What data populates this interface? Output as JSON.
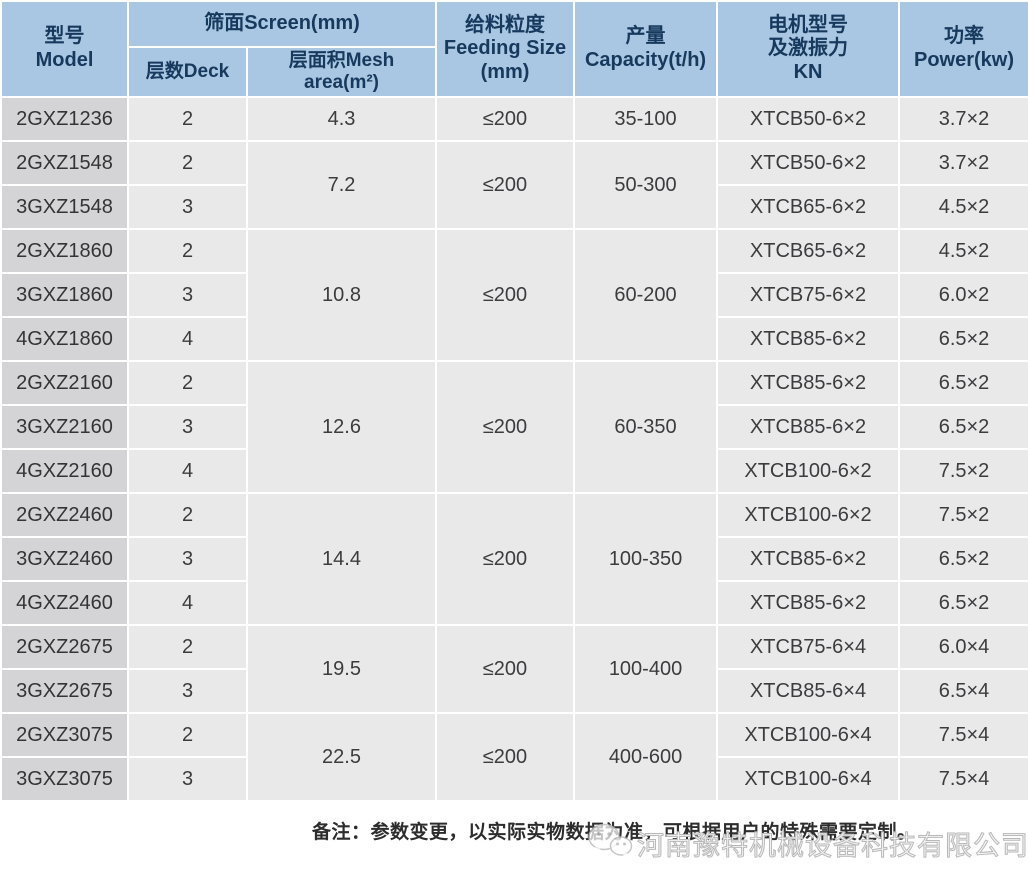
{
  "table": {
    "header": {
      "model": "型号\nModel",
      "screen_group": "筛面Screen(mm)",
      "deck": "层数Deck",
      "mesh_area": "层面积Mesh area(m²)",
      "feeding_size": "给料粒度\nFeeding Size\n(mm)",
      "capacity": "产量\nCapacity(t/h)",
      "motor": "电机型号\n及激振力\nKN",
      "power": "功率\nPower(kw)"
    },
    "groups": [
      {
        "mesh_area": "4.3",
        "feeding_size": "≤200",
        "capacity": "35-100",
        "rows": [
          {
            "model": "2GXZ1236",
            "deck": "2",
            "motor": "XTCB50-6×2",
            "power": "3.7×2"
          }
        ]
      },
      {
        "mesh_area": "7.2",
        "feeding_size": "≤200",
        "capacity": "50-300",
        "rows": [
          {
            "model": "2GXZ1548",
            "deck": "2",
            "motor": "XTCB50-6×2",
            "power": "3.7×2"
          },
          {
            "model": "3GXZ1548",
            "deck": "3",
            "motor": "XTCB65-6×2",
            "power": "4.5×2"
          }
        ]
      },
      {
        "mesh_area": "10.8",
        "feeding_size": "≤200",
        "capacity": "60-200",
        "rows": [
          {
            "model": "2GXZ1860",
            "deck": "2",
            "motor": "XTCB65-6×2",
            "power": "4.5×2"
          },
          {
            "model": "3GXZ1860",
            "deck": "3",
            "motor": "XTCB75-6×2",
            "power": "6.0×2"
          },
          {
            "model": "4GXZ1860",
            "deck": "4",
            "motor": "XTCB85-6×2",
            "power": "6.5×2"
          }
        ]
      },
      {
        "mesh_area": "12.6",
        "feeding_size": "≤200",
        "capacity": "60-350",
        "rows": [
          {
            "model": "2GXZ2160",
            "deck": "2",
            "motor": "XTCB85-6×2",
            "power": "6.5×2"
          },
          {
            "model": "3GXZ2160",
            "deck": "3",
            "motor": "XTCB85-6×2",
            "power": "6.5×2"
          },
          {
            "model": "4GXZ2160",
            "deck": "4",
            "motor": "XTCB100-6×2",
            "power": "7.5×2"
          }
        ]
      },
      {
        "mesh_area": "14.4",
        "feeding_size": "≤200",
        "capacity": "100-350",
        "rows": [
          {
            "model": "2GXZ2460",
            "deck": "2",
            "motor": "XTCB100-6×2",
            "power": "7.5×2"
          },
          {
            "model": "3GXZ2460",
            "deck": "3",
            "motor": "XTCB85-6×2",
            "power": "6.5×2"
          },
          {
            "model": "4GXZ2460",
            "deck": "4",
            "motor": "XTCB85-6×2",
            "power": "6.5×2"
          }
        ]
      },
      {
        "mesh_area": "19.5",
        "feeding_size": "≤200",
        "capacity": "100-400",
        "rows": [
          {
            "model": "2GXZ2675",
            "deck": "2",
            "motor": "XTCB75-6×4",
            "power": "6.0×4"
          },
          {
            "model": "3GXZ2675",
            "deck": "3",
            "motor": "XTCB85-6×4",
            "power": "6.5×4"
          }
        ]
      },
      {
        "mesh_area": "22.5",
        "feeding_size": "≤200",
        "capacity": "400-600",
        "rows": [
          {
            "model": "2GXZ3075",
            "deck": "2",
            "motor": "XTCB100-6×4",
            "power": "7.5×4"
          },
          {
            "model": "3GXZ3075",
            "deck": "3",
            "motor": "XTCB100-6×4",
            "power": "7.5×4"
          }
        ]
      }
    ]
  },
  "note": "备注：参数变更，以实际实物数据为准，可根据用户的特殊需要定制。",
  "watermark": {
    "icon": "wechat-icon",
    "text": "河南豫特机械设备科技有限公司"
  },
  "colors": {
    "header_bg": "#a9c7e2",
    "header_text": "#17395d",
    "cell_bg": "#e9e9ea",
    "model_cell_bg": "#d4d4d6",
    "cell_text": "#3c3c3e",
    "grid": "#ffffff"
  }
}
